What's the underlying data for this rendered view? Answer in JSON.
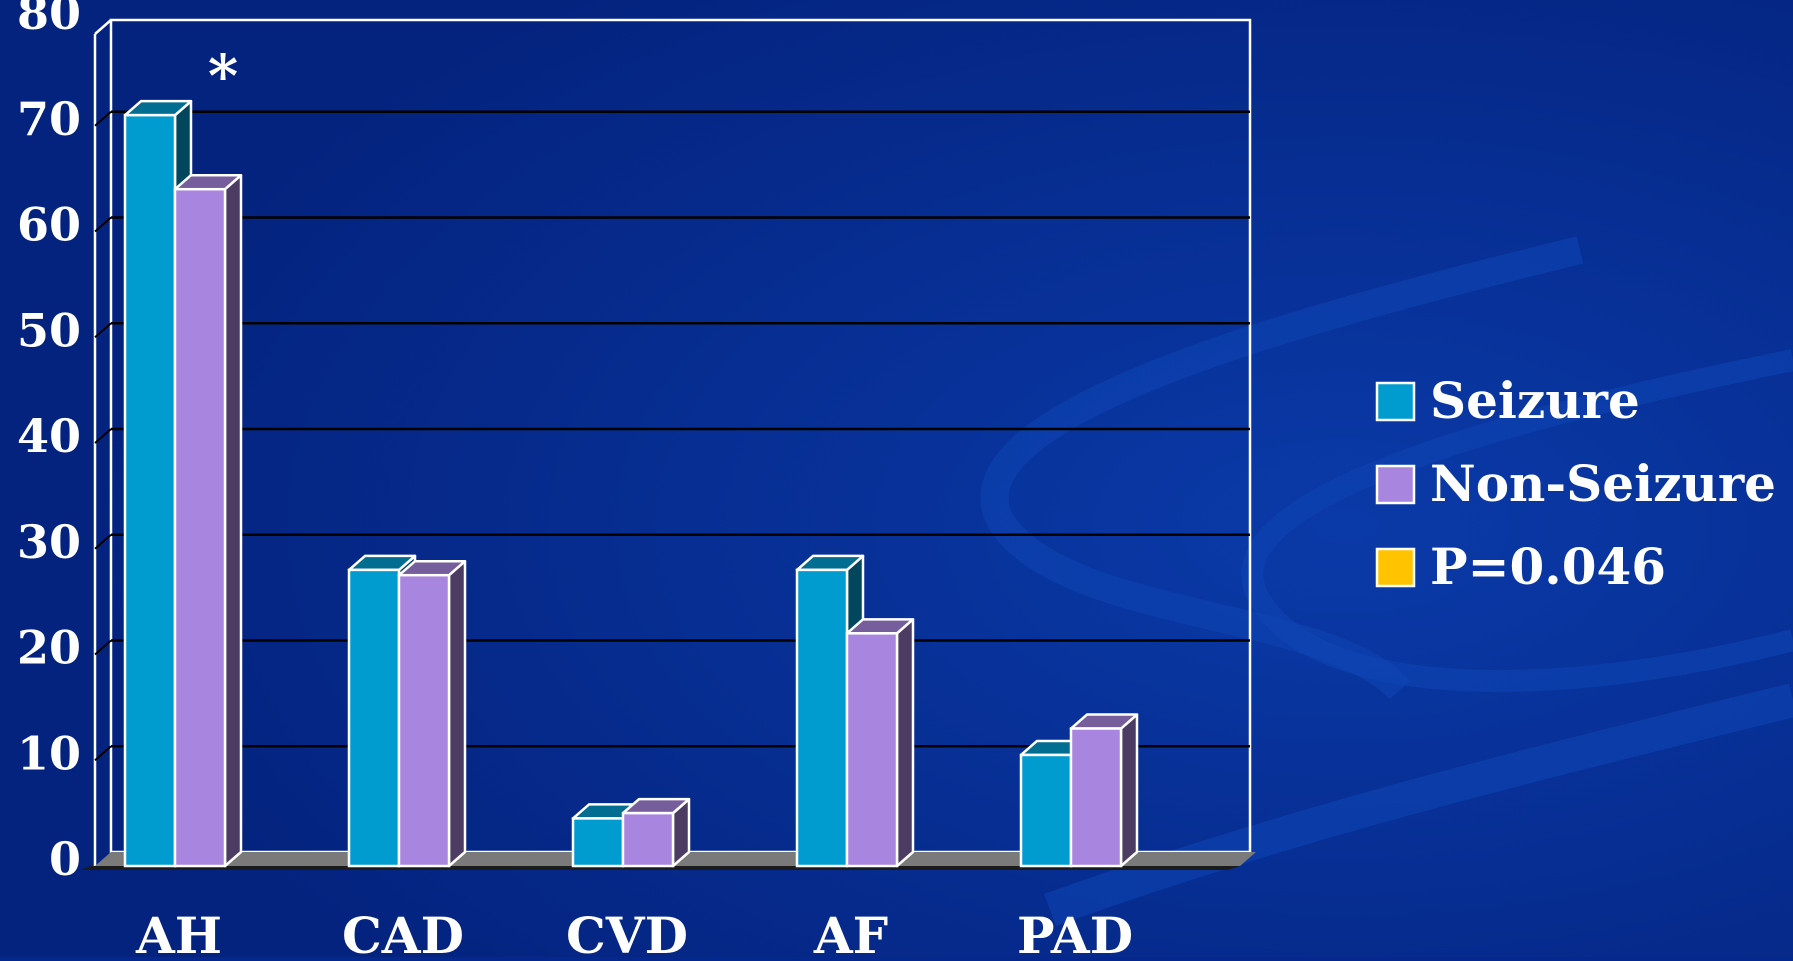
{
  "chart_data": {
    "type": "bar",
    "categories": [
      "AH",
      "CAD",
      "CVD",
      "AF",
      "PAD"
    ],
    "series": [
      {
        "name": "Seizure",
        "values": [
          71,
          28,
          4.5,
          28,
          10.5
        ],
        "color": "#009ccf"
      },
      {
        "name": "Non-Seizure",
        "values": [
          64,
          27.5,
          5,
          22,
          13
        ],
        "color": "#a886df"
      }
    ],
    "legend_extra": [
      {
        "name": "P=0.046",
        "color": "#ffc300"
      }
    ],
    "annotations": [
      {
        "category": "AH",
        "text": "*"
      }
    ],
    "ylim": [
      0,
      80
    ],
    "yticks": [
      0,
      10,
      20,
      30,
      40,
      50,
      60,
      70,
      80
    ],
    "grid": true,
    "legend_position": "right",
    "xlabel": "",
    "ylabel": "",
    "title": ""
  },
  "colors": {
    "background": "#05288f",
    "gridline": "#000000",
    "floor": "#7a7a7a",
    "outline": "#ffffff"
  }
}
